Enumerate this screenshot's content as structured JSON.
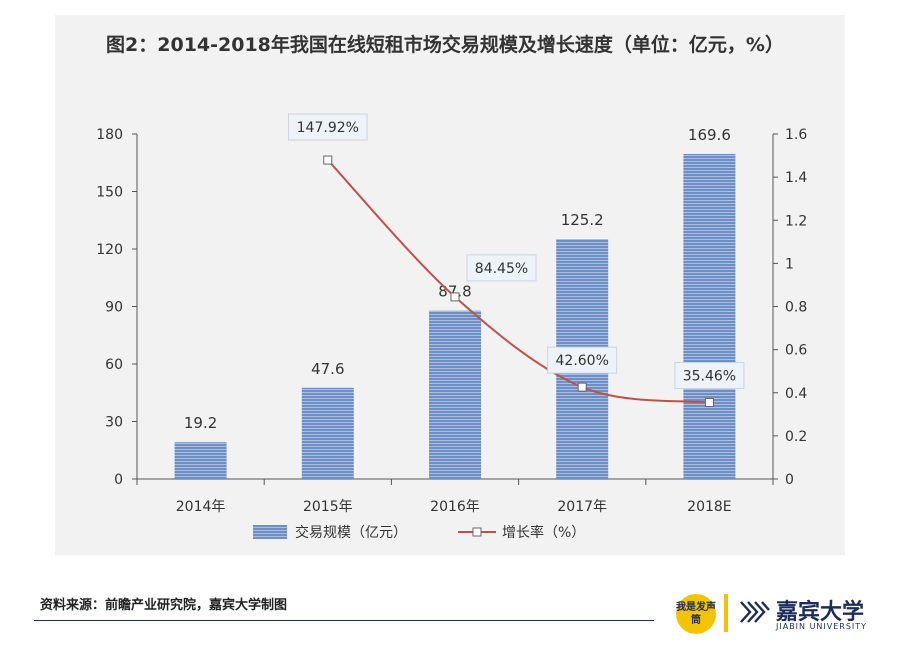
{
  "title": "图2：2014-2018年我国在线短租市场交易规模及增长速度（单位：亿元，%）",
  "source": "资料来源：前瞻产业研究院，嘉宾大学制图",
  "logos": {
    "badge_text": "我是发声筒",
    "brand_cn": "嘉宾大学",
    "brand_en": "JIABIN UNIVERSITY",
    "badge_color": "#f2c400",
    "brand_color": "#1c2c5c"
  },
  "chart_data": {
    "type": "bar",
    "categories": [
      "2014年",
      "2015年",
      "2016年",
      "2017年",
      "2018E"
    ],
    "series": [
      {
        "name": "交易规模（亿元）",
        "type": "bar",
        "axis": "left",
        "values": [
          19.2,
          47.6,
          87.8,
          125.2,
          169.6
        ],
        "labels": [
          "19.2",
          "47.6",
          "87.8",
          "125.2",
          "169.6"
        ],
        "color": "#6f8fc4"
      },
      {
        "name": "增长率（%）",
        "type": "line",
        "axis": "right",
        "values": [
          null,
          1.4792,
          0.8445,
          0.426,
          0.3546
        ],
        "labels": [
          "",
          "147.92%",
          "84.45%",
          "42.60%",
          "35.46%"
        ],
        "color": "#c0504d"
      }
    ],
    "y_left": {
      "min": 0,
      "max": 180,
      "ticks": [
        "0",
        "30",
        "60",
        "90",
        "120",
        "150",
        "180"
      ]
    },
    "y_right": {
      "min": 0,
      "max": 1.6,
      "ticks": [
        "0",
        "0.2",
        "0.4",
        "0.6",
        "0.8",
        "1",
        "1.2",
        "1.4",
        "1.6"
      ]
    },
    "legend": "bottom",
    "grid": false
  }
}
